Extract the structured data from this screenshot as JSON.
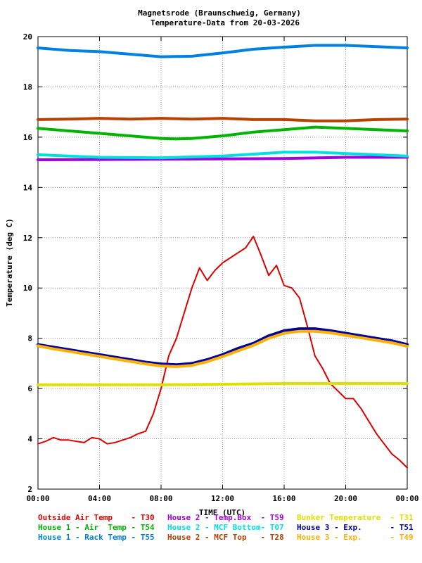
{
  "chart_data": {
    "type": "line",
    "title": "Magnetsrode (Braunschweig, Germany)",
    "subtitle": "Temperature-Data from 20-03-2026",
    "xlabel": "TIME (UTC)",
    "ylabel": "Temperature (deg C)",
    "xlim": [
      0,
      24
    ],
    "ylim": [
      2,
      20
    ],
    "x_ticks": [
      "00:00",
      "04:00",
      "08:00",
      "12:00",
      "16:00",
      "20:00",
      "00:00"
    ],
    "y_ticks": [
      "2",
      "4",
      "6",
      "8",
      "10",
      "12",
      "14",
      "16",
      "18",
      "20"
    ],
    "grid": true,
    "legend_position": "bottom",
    "series": [
      {
        "name": "Outside Air Temp    - T30",
        "color": "#e00000",
        "x": [
          0,
          0.5,
          1,
          1.5,
          2,
          2.5,
          3,
          3.5,
          4,
          4.5,
          5,
          5.5,
          6,
          6.5,
          7,
          7.5,
          8,
          8.5,
          9,
          9.5,
          10,
          10.5,
          11,
          11.5,
          12,
          12.5,
          13,
          13.5,
          14,
          14.5,
          15,
          15.5,
          16,
          16.5,
          17,
          17.5,
          18,
          18.5,
          19,
          19.5,
          20,
          20.5,
          21,
          21.5,
          22,
          22.5,
          23,
          23.5,
          24
        ],
        "y": [
          3.8,
          3.9,
          4.05,
          3.95,
          3.95,
          3.9,
          3.85,
          4.05,
          4.0,
          3.8,
          3.85,
          3.95,
          4.05,
          4.2,
          4.3,
          5.0,
          6.0,
          7.3,
          8.0,
          9.0,
          10.0,
          10.8,
          10.3,
          10.7,
          11.0,
          11.2,
          11.4,
          11.6,
          12.05,
          11.3,
          10.5,
          10.9,
          10.1,
          10.0,
          9.6,
          8.5,
          7.3,
          6.8,
          6.2,
          5.9,
          5.6,
          5.6,
          5.2,
          4.7,
          4.2,
          3.8,
          3.4,
          3.15,
          2.85
        ]
      },
      {
        "name": "House 1 - Air  Temp - T54",
        "color": "#00b400",
        "x": [
          0,
          2,
          4,
          6,
          8,
          9,
          10,
          12,
          14,
          16,
          18,
          20,
          22,
          24
        ],
        "y": [
          16.35,
          16.25,
          16.15,
          16.05,
          15.95,
          15.93,
          15.95,
          16.05,
          16.2,
          16.3,
          16.4,
          16.35,
          16.3,
          16.25
        ]
      },
      {
        "name": "House 1 - Rack Temp - T55",
        "color": "#0080e0",
        "x": [
          0,
          2,
          4,
          6,
          8,
          10,
          12,
          14,
          16,
          18,
          20,
          22,
          24
        ],
        "y": [
          19.55,
          19.45,
          19.4,
          19.3,
          19.2,
          19.22,
          19.35,
          19.5,
          19.58,
          19.65,
          19.65,
          19.6,
          19.55
        ]
      },
      {
        "name": "House 2 - Temp.Box  - T59",
        "color": "#a000e0",
        "x": [
          0,
          8,
          16,
          20,
          24
        ],
        "y": [
          15.1,
          15.12,
          15.15,
          15.2,
          15.2
        ]
      },
      {
        "name": "House 2 - MCF Bottom- T07",
        "color": "#00e0e0",
        "x": [
          0,
          4,
          8,
          12,
          16,
          18,
          20,
          24
        ],
        "y": [
          15.3,
          15.2,
          15.18,
          15.25,
          15.4,
          15.4,
          15.35,
          15.25
        ]
      },
      {
        "name": "House 2 - MCF Top   - T28",
        "color": "#b84000",
        "x": [
          0,
          2,
          4,
          6,
          8,
          10,
          12,
          14,
          16,
          18,
          20,
          22,
          24
        ],
        "y": [
          16.7,
          16.72,
          16.75,
          16.72,
          16.75,
          16.72,
          16.75,
          16.7,
          16.7,
          16.65,
          16.65,
          16.7,
          16.72
        ]
      },
      {
        "name": "Bunker Temperature  - T31",
        "color": "#e0e000",
        "x": [
          0,
          4,
          8,
          12,
          16,
          20,
          24
        ],
        "y": [
          6.15,
          6.15,
          6.15,
          6.17,
          6.2,
          6.2,
          6.2
        ]
      },
      {
        "name": "House 3 - Exp.      - T51",
        "color": "#0000a0",
        "x": [
          0,
          1,
          2,
          3,
          4,
          5,
          6,
          7,
          8,
          9,
          10,
          11,
          12,
          13,
          14,
          15,
          16,
          17,
          18,
          19,
          20,
          21,
          22,
          23,
          24
        ],
        "y": [
          7.75,
          7.65,
          7.55,
          7.45,
          7.35,
          7.25,
          7.15,
          7.05,
          6.98,
          6.95,
          7.0,
          7.15,
          7.35,
          7.6,
          7.8,
          8.1,
          8.3,
          8.38,
          8.38,
          8.3,
          8.2,
          8.1,
          8.0,
          7.9,
          7.75
        ]
      },
      {
        "name": "House 3 - Exp.      - T49",
        "color": "#ffb000",
        "x": [
          0,
          1,
          2,
          3,
          4,
          5,
          6,
          7,
          8,
          9,
          10,
          11,
          12,
          13,
          14,
          15,
          16,
          17,
          18,
          19,
          20,
          21,
          22,
          23,
          24
        ],
        "y": [
          7.7,
          7.58,
          7.48,
          7.38,
          7.28,
          7.18,
          7.08,
          6.98,
          6.9,
          6.87,
          6.92,
          7.07,
          7.27,
          7.5,
          7.72,
          8.0,
          8.2,
          8.28,
          8.28,
          8.22,
          8.12,
          8.02,
          7.92,
          7.82,
          7.68
        ]
      }
    ]
  }
}
